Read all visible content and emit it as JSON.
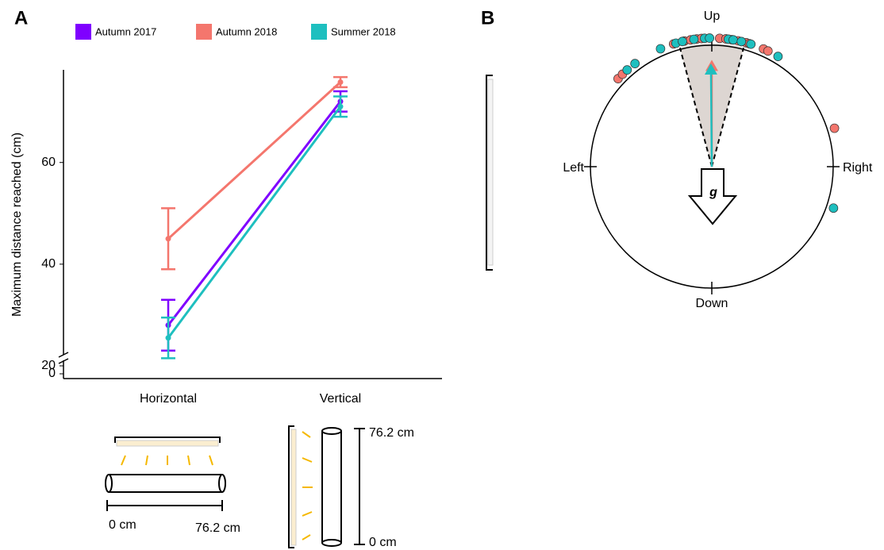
{
  "panel_labels": [
    "A",
    "B"
  ],
  "chart_data": [
    {
      "type": "line",
      "y_label": "Maximum distance reached (cm)",
      "categories": [
        "Horizontal",
        "Vertical"
      ],
      "series": [
        {
          "name": "Autumn 2017",
          "color": "#7f00ff",
          "values": [
            28,
            72
          ],
          "errors": [
            5,
            2
          ]
        },
        {
          "name": "Autumn 2018",
          "color": "#f4766d",
          "values": [
            45,
            75.8
          ],
          "errors": [
            6,
            1
          ]
        },
        {
          "name": "Summer 2018",
          "color": "#1ebfbf",
          "values": [
            25.5,
            71
          ],
          "errors": [
            4,
            2
          ]
        }
      ],
      "ylim": [
        17.5,
        79
      ],
      "yticks": [
        0,
        20,
        40,
        60
      ],
      "axis_break": true
    },
    {
      "type": "circular",
      "direction_labels": {
        "up": "Up",
        "down": "Down",
        "left": "Left",
        "right": "Right"
      },
      "gravity_label": "g",
      "ci": [
        -15,
        15
      ],
      "series": [
        {
          "color": "#f4766d",
          "values": [
            -46.8,
            -44,
            -17.3,
            -12.3,
            -9.5,
            -6.7,
            -4.6,
            3.5,
            6.3,
            8.9,
            11.8,
            15.5,
            17,
            23.7,
            25.9,
            72.6
          ],
          "mean_angle": 0,
          "mean_length": 0.88
        },
        {
          "color": "#1ebfbf",
          "values": [
            -41.2,
            -36.7,
            -23.5,
            -16.2,
            -13.2,
            -8,
            -3.2,
            -1,
            7.4,
            9.6,
            13.3,
            17.7,
            31,
            108.8
          ],
          "mean_angle": -0.5,
          "mean_length": 0.85
        }
      ]
    }
  ],
  "schematic_labels": {
    "horizontal_start": "0 cm",
    "horizontal_end": "76.2 cm",
    "vertical_top": "76.2 cm",
    "vertical_bottom": "0 cm"
  }
}
